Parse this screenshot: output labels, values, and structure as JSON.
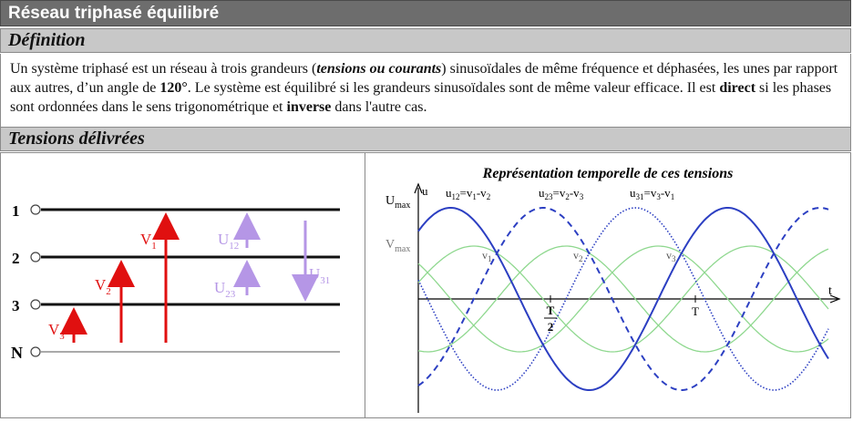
{
  "header": {
    "title": "Réseau triphasé équilibré"
  },
  "definition": {
    "title": "Définition",
    "p1": "Un système triphasé est un  réseau à trois grandeurs (",
    "p2": "tensions ou courants",
    "p3": ") sinusoïdales de même fréquence et déphasées, les unes par rapport aux autres, d’un angle de ",
    "p4": "120°",
    "p5": ". Le système est équilibré si les grandeurs sinusoïdales sont de même valeur efficace. Il est ",
    "p6": "direct",
    "p7": " si les phases sont ordonnées dans le sens trigonométrique et ",
    "p8": "inverse",
    "p9": " dans l'autre cas."
  },
  "tensions": {
    "title": "Tensions délivrées",
    "diagram": {
      "line_labels": [
        "1",
        "2",
        "3",
        "N"
      ],
      "v1": "V",
      "v1_sub": "1",
      "v2": "V",
      "v2_sub": "2",
      "v3": "V",
      "v3_sub": "3",
      "u12": "U",
      "u12_sub": "12",
      "u23": "U",
      "u23_sub": "23",
      "u31": "U",
      "u31_sub": "31",
      "colors": {
        "simple": "#e01010",
        "composee": "#b596e6",
        "line": "#111111"
      }
    },
    "graph": {
      "title": "Représentation temporelle de ces tensions",
      "u_label": "u",
      "t_label": "t",
      "umax": "U",
      "umax_sub": "max",
      "vmax": "V",
      "vmax_sub": "max",
      "legend_u12": "u",
      "legend_u12_sub": "12",
      "legend_u12_rest": "=v",
      "legend_u12_s1": "1",
      "legend_u12_dash": "-v",
      "legend_u12_s2": "2",
      "legend_u23": "u",
      "legend_u23_sub": "23",
      "legend_u23_rest": "=v",
      "legend_u23_s1": "2",
      "legend_u23_dash": "-v",
      "legend_u23_s2": "3",
      "legend_u31": "u",
      "legend_u31_sub": "31",
      "legend_u31_rest": "=v",
      "legend_u31_s1": "3",
      "legend_u31_dash": "-v",
      "legend_u31_s2": "1",
      "v1": "v",
      "v1_sub": "1",
      "v2": "v",
      "v2_sub": "2",
      "v3": "v",
      "v3_sub": "3",
      "half_period_top": "T",
      "half_period_bottom": "2",
      "period": "T",
      "colors": {
        "composee": "#2c3fc2",
        "simple": "#8fd88f",
        "axis": "#000000"
      }
    }
  }
}
